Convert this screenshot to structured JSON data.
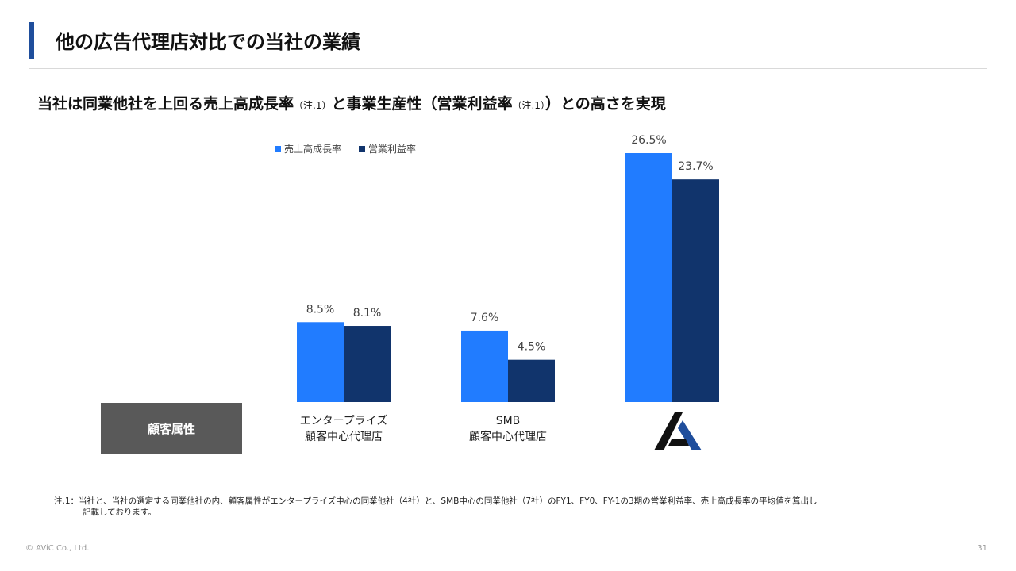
{
  "header": {
    "title": "他の広告代理店対比での当社の業績",
    "accent_color": "#1f4e9c"
  },
  "subtitle": {
    "part1": "当社は同業他社を上回る売上高成長率",
    "note1": "（注.1）",
    "part2": "と事業生産性（営業利益率",
    "note2": "（注.1）",
    "part3": "）との高さを実現"
  },
  "attribute_label": "顧客属性",
  "category_labels": [
    {
      "line1": "エンタープライズ",
      "line2": "顧客中心代理店"
    },
    {
      "line1": "SMB",
      "line2": "顧客中心代理店"
    }
  ],
  "logo_icon": "avic-logo-icon",
  "chart_data": {
    "type": "bar",
    "categories": [
      "エンタープライズ顧客中心代理店",
      "SMB顧客中心代理店",
      "当社"
    ],
    "series": [
      {
        "name": "売上高成長率",
        "color": "#217cff",
        "values": [
          8.5,
          7.6,
          26.5
        ],
        "labels": [
          "8.5%",
          "7.6%",
          "26.5%"
        ]
      },
      {
        "name": "営業利益率",
        "color": "#11346c",
        "values": [
          8.1,
          4.5,
          23.7
        ],
        "labels": [
          "8.1%",
          "4.5%",
          "23.7%"
        ]
      }
    ],
    "ylim": [
      0,
      26.5
    ],
    "grid": false,
    "legend_position": "top"
  },
  "footnote": {
    "line1": "注.1：当社と、当社の選定する同業他社の内、顧客属性がエンタープライズ中心の同業他社（4社）と、SMB中心の同業他社（7社）のFY1、FY0、FY-1の3期の営業利益率、売上高成長率の平均値を算出し",
    "line2": "記載しております。"
  },
  "footer": {
    "copyright": "© AViC Co., Ltd.",
    "page_number": "31"
  }
}
